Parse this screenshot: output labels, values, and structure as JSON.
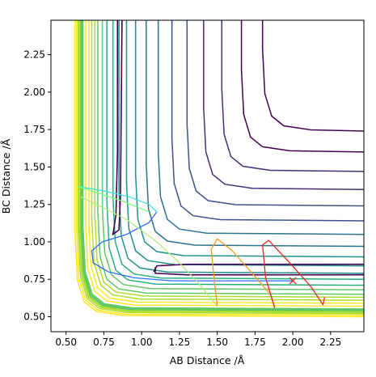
{
  "chart_data": {
    "type": "contour",
    "xlabel": "AB Distance /Å",
    "ylabel": "BC Distance /Å",
    "xlim": [
      0.4,
      2.47
    ],
    "ylim": [
      0.4,
      2.48
    ],
    "xticks": [
      "0.50",
      "0.75",
      "1.00",
      "1.25",
      "1.50",
      "1.75",
      "2.00",
      "2.25"
    ],
    "yticks": [
      "0.50",
      "0.75",
      "1.00",
      "1.25",
      "1.50",
      "1.75",
      "2.00",
      "2.25"
    ],
    "colormap": [
      "#440154",
      "#472d7b",
      "#3b528b",
      "#2c728e",
      "#21918c",
      "#28ae80",
      "#5ec962",
      "#addc30",
      "#fde725"
    ],
    "contours": [
      {
        "level": 0,
        "pts": [
          [
            0.84,
            2.48
          ],
          [
            0.84,
            1.6
          ],
          [
            0.83,
            1.18
          ],
          [
            0.81,
            1.05
          ],
          [
            0.85,
            1.08
          ],
          [
            0.86,
            1.3
          ],
          [
            0.87,
            2.48
          ]
        ]
      },
      {
        "level": 0,
        "pts": [
          [
            1.08,
            0.8
          ],
          [
            1.1,
            0.84
          ],
          [
            1.3,
            0.85
          ],
          [
            1.8,
            0.85
          ],
          [
            2.47,
            0.85
          ]
        ]
      },
      {
        "level": 0,
        "pts": [
          [
            1.09,
            0.83
          ],
          [
            1.09,
            0.79
          ],
          [
            1.3,
            0.78
          ],
          [
            1.8,
            0.78
          ],
          [
            2.47,
            0.78
          ]
        ]
      }
    ],
    "lj_curves": {
      "corner_x": 0.6,
      "corner_y": 0.54,
      "y_max": 2.48,
      "x_max": 2.47,
      "offsets": [
        0.03,
        0.05,
        0.07,
        0.09,
        0.11,
        0.14,
        0.17,
        0.21,
        0.25,
        0.3,
        0.36,
        0.43,
        0.51,
        0.6,
        0.7,
        0.81,
        0.93,
        1.06,
        1.2
      ],
      "pad_offsets": [
        -0.04,
        -0.03,
        -0.02,
        -0.012,
        -0.006,
        0.0,
        0.006,
        0.012
      ]
    },
    "trajectories": [
      {
        "color": "#2b6cff",
        "pts": [
          [
            2.0,
            0.74
          ],
          [
            1.6,
            0.74
          ],
          [
            1.2,
            0.74
          ],
          [
            0.95,
            0.76
          ],
          [
            0.78,
            0.8
          ],
          [
            0.68,
            0.86
          ],
          [
            0.67,
            0.94
          ],
          [
            0.74,
            1.0
          ],
          [
            0.9,
            1.05
          ],
          [
            1.05,
            1.13
          ],
          [
            1.1,
            1.2
          ]
        ]
      },
      {
        "color": "#43e0e0",
        "pts": [
          [
            1.1,
            1.2
          ],
          [
            1.05,
            1.25
          ],
          [
            0.92,
            1.3
          ],
          [
            0.75,
            1.34
          ],
          [
            0.58,
            1.37
          ]
        ]
      },
      {
        "color": "#7fff7f",
        "pts": [
          [
            0.58,
            1.37
          ],
          [
            0.7,
            1.33
          ],
          [
            0.88,
            1.27
          ],
          [
            1.0,
            1.22
          ],
          [
            1.05,
            1.2
          ]
        ]
      },
      {
        "color": "#b3f07a",
        "pts": [
          [
            0.6,
            1.3
          ],
          [
            0.9,
            1.15
          ],
          [
            1.1,
            1.0
          ],
          [
            1.25,
            0.86
          ],
          [
            1.38,
            0.72
          ],
          [
            1.5,
            0.57
          ]
        ]
      },
      {
        "color": "#ff9a1f",
        "pts": [
          [
            1.5,
            0.57
          ],
          [
            1.48,
            0.75
          ],
          [
            1.46,
            0.95
          ],
          [
            1.5,
            1.02
          ],
          [
            1.6,
            0.94
          ],
          [
            1.74,
            0.78
          ],
          [
            1.85,
            0.65
          ],
          [
            1.88,
            0.56
          ]
        ]
      },
      {
        "color": "#e8261c",
        "pts": [
          [
            1.88,
            0.56
          ],
          [
            1.82,
            0.76
          ],
          [
            1.8,
            0.98
          ],
          [
            1.84,
            1.01
          ],
          [
            1.98,
            0.86
          ],
          [
            2.12,
            0.7
          ],
          [
            2.2,
            0.58
          ],
          [
            2.21,
            0.63
          ]
        ]
      }
    ],
    "marker": {
      "x": 2.0,
      "y": 0.74,
      "symbol": "x",
      "color": "#e8261c"
    }
  }
}
